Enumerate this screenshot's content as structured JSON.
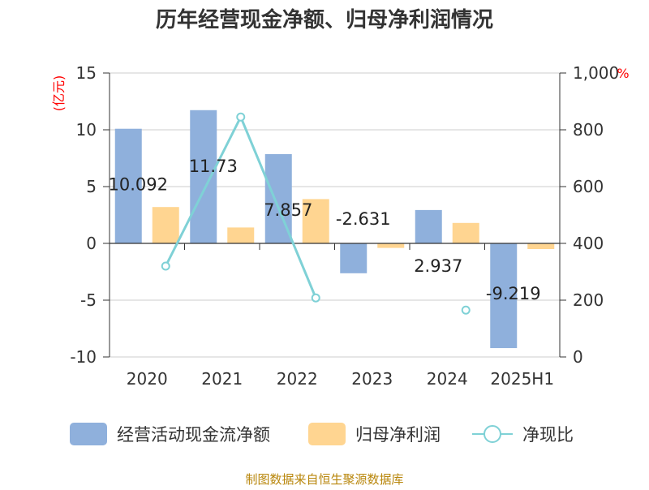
{
  "chart_data": {
    "type": "bar",
    "title": "历年经营现金净额、归母净利润情况",
    "categories": [
      "2020",
      "2021",
      "2022",
      "2023",
      "2024",
      "2025H1"
    ],
    "left_axis": {
      "unit": "(亿元)",
      "ylim": [
        -10,
        15
      ],
      "ticks": [
        "15",
        "10",
        "5",
        "0",
        "-5",
        "-10"
      ]
    },
    "right_axis": {
      "unit": "%",
      "ylim": [
        0,
        1000
      ],
      "ticks": [
        "1,000",
        "800",
        "600",
        "400",
        "200",
        "0"
      ]
    },
    "series": [
      {
        "name": "经营活动现金流净额",
        "type": "bar",
        "axis": "left",
        "color": "#8fb0dc",
        "values": [
          10.092,
          11.73,
          7.857,
          -2.631,
          2.937,
          -9.219
        ],
        "labels": [
          "10.092",
          "11.73",
          "7.857",
          "-2.631",
          "2.937",
          "-9.219"
        ]
      },
      {
        "name": "归母净利润",
        "type": "bar",
        "axis": "left",
        "color": "#ffd591",
        "values": [
          3.2,
          1.4,
          3.9,
          -0.4,
          1.8,
          -0.5
        ]
      },
      {
        "name": "净现比",
        "type": "line",
        "axis": "right",
        "color": "#7fd1d6",
        "values": [
          320,
          845,
          208,
          null,
          165,
          null
        ]
      }
    ],
    "legend_position": "bottom",
    "grid": true
  },
  "source_text": "制图数据来自恒生聚源数据库"
}
